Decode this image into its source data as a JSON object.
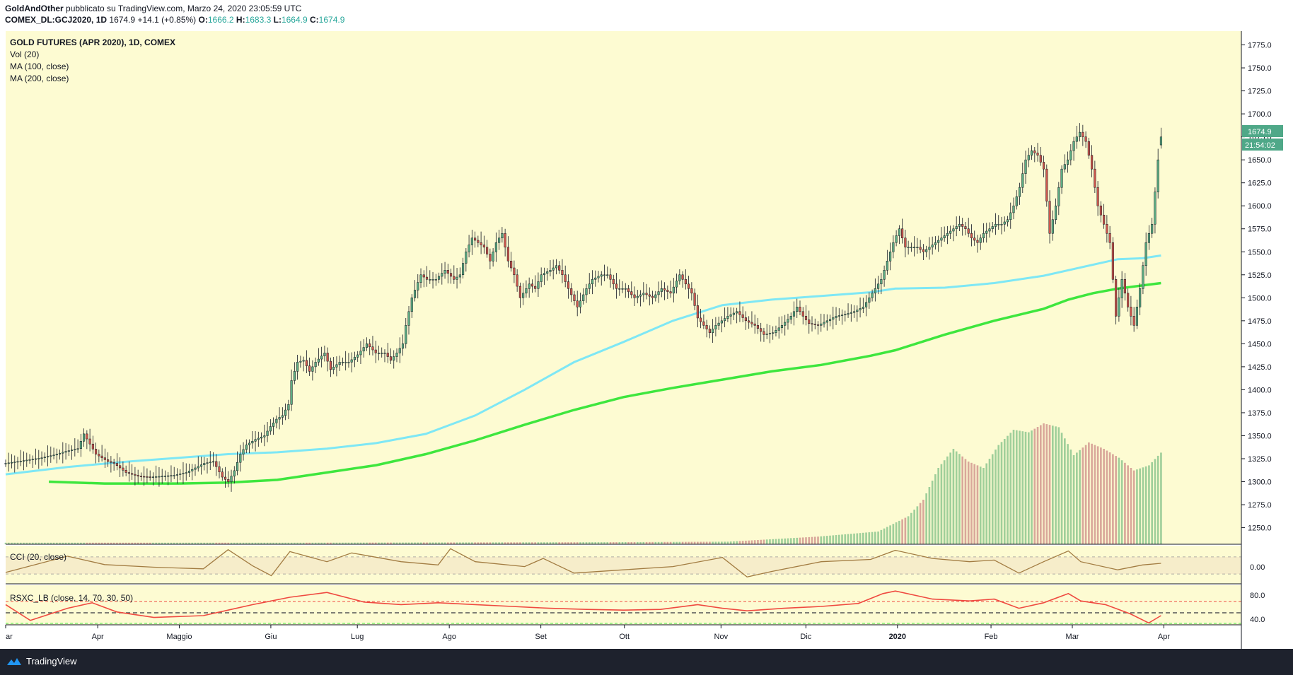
{
  "header": {
    "line1_author": "GoldAndOther",
    "line1_rest": "pubblicato su TradingView.com, Marzo 24, 2020 23:05:59 UTC",
    "symbol": "COMEX_DL:GCJ2020, 1D",
    "last": "1674.9",
    "change": "+14.1 (+0.85%)",
    "o_label": "O:",
    "o_value": "1666.2",
    "h_label": "H:",
    "h_value": "1683.3",
    "l_label": "L:",
    "l_value": "1664.9",
    "c_label": "C:",
    "c_value": "1674.9"
  },
  "legend": {
    "title": "GOLD FUTURES (APR 2020), 1D, COMEX",
    "vol": "Vol (20)",
    "ma100": "MA (100, close)",
    "ma200": "MA (200, close)"
  },
  "indicators": {
    "cci_label": "CCI (20, close)",
    "cci_value_label": "0.00",
    "rsx_label": "RSXC_LB (close, 14, 70, 30, 50)",
    "rsx_tick_80": "80.0",
    "rsx_tick_40": "40.0"
  },
  "badges": {
    "price": "1674.9",
    "countdown": "21:54:02"
  },
  "footer": {
    "brand": "TradingView"
  },
  "colors": {
    "background": "#fdfbd2",
    "up_candle": "#5dae84",
    "down_candle": "#d0574d",
    "ma100": "#7ee7f5",
    "ma200": "#3ee63e",
    "cci_line": "#a27c42",
    "rsx_line": "#ef4a40",
    "price_badge": "#4fa888"
  },
  "chart_data": {
    "type": "candlestick",
    "title": "GOLD FUTURES (APR 2020), 1D, COMEX",
    "y_axis_ticks": [
      "1775.0",
      "1750.0",
      "1725.0",
      "1700.0",
      "1675.0",
      "1650.0",
      "1625.0",
      "1600.0",
      "1575.0",
      "1550.0",
      "1525.0",
      "1500.0",
      "1475.0",
      "1450.0",
      "1425.0",
      "1400.0",
      "1375.0",
      "1350.0",
      "1325.0",
      "1300.0",
      "1275.0",
      "1250.0"
    ],
    "ylim": [
      1232,
      1790
    ],
    "x_axis_labels": [
      "ar",
      "Apr",
      "Maggio",
      "Giu",
      "Lug",
      "Ago",
      "Set",
      "Ott",
      "Nov",
      "Dic",
      "2020",
      "Feb",
      "Mar",
      "Apr"
    ],
    "x_axis_bold": "2020",
    "anchors": [
      {
        "label": "Apr",
        "pos": 0.0745
      },
      {
        "label": "Maggio",
        "pos": 0.1405
      },
      {
        "label": "Giu",
        "pos": 0.2146
      },
      {
        "label": "Lug",
        "pos": 0.2846
      },
      {
        "label": "Ago",
        "pos": 0.359
      },
      {
        "label": "Set",
        "pos": 0.4331
      },
      {
        "label": "Ott",
        "pos": 0.5007
      },
      {
        "label": "Nov",
        "pos": 0.5789
      },
      {
        "label": "Dic",
        "pos": 0.6476
      },
      {
        "label": "2020",
        "pos": 0.7217
      },
      {
        "label": "Feb",
        "pos": 0.7974
      },
      {
        "label": "Mar",
        "pos": 0.8632
      },
      {
        "label": "Apr",
        "pos": 0.9373
      }
    ],
    "last_price": 1674.9,
    "close_path": [
      [
        0,
        1320
      ],
      [
        4,
        1322
      ],
      [
        8,
        1324
      ],
      [
        12,
        1326
      ],
      [
        16,
        1329
      ],
      [
        20,
        1333
      ],
      [
        24,
        1336
      ],
      [
        26,
        1352
      ],
      [
        30,
        1330
      ],
      [
        34,
        1322
      ],
      [
        36,
        1320
      ],
      [
        40,
        1310
      ],
      [
        44,
        1306
      ],
      [
        48,
        1305
      ],
      [
        52,
        1306
      ],
      [
        56,
        1307
      ],
      [
        60,
        1310
      ],
      [
        63,
        1315
      ],
      [
        66,
        1320
      ],
      [
        69,
        1322
      ],
      [
        72,
        1305
      ],
      [
        74,
        1300
      ],
      [
        76,
        1312
      ],
      [
        78,
        1330
      ],
      [
        80,
        1340
      ],
      [
        83,
        1346
      ],
      [
        86,
        1350
      ],
      [
        88,
        1360
      ],
      [
        90,
        1368
      ],
      [
        92,
        1372
      ],
      [
        94,
        1384
      ],
      [
        95,
        1410
      ],
      [
        97,
        1430
      ],
      [
        99,
        1432
      ],
      [
        101,
        1420
      ],
      [
        103,
        1430
      ],
      [
        106,
        1440
      ],
      [
        108,
        1422
      ],
      [
        111,
        1430
      ],
      [
        114,
        1430
      ],
      [
        117,
        1438
      ],
      [
        120,
        1450
      ],
      [
        123,
        1440
      ],
      [
        126,
        1440
      ],
      [
        128,
        1432
      ],
      [
        130,
        1440
      ],
      [
        132,
        1450
      ],
      [
        133,
        1470
      ],
      [
        135,
        1500
      ],
      [
        138,
        1525
      ],
      [
        140,
        1520
      ],
      [
        143,
        1520
      ],
      [
        146,
        1530
      ],
      [
        149,
        1520
      ],
      [
        151,
        1525
      ],
      [
        153,
        1550
      ],
      [
        155,
        1565
      ],
      [
        157,
        1560
      ],
      [
        159,
        1555
      ],
      [
        161,
        1540
      ],
      [
        163,
        1560
      ],
      [
        165,
        1570
      ],
      [
        167,
        1540
      ],
      [
        169,
        1525
      ],
      [
        171,
        1500
      ],
      [
        174,
        1515
      ],
      [
        176,
        1510
      ],
      [
        178,
        1525
      ],
      [
        181,
        1530
      ],
      [
        183,
        1535
      ],
      [
        185,
        1525
      ],
      [
        187,
        1510
      ],
      [
        190,
        1490
      ],
      [
        193,
        1510
      ],
      [
        195,
        1520
      ],
      [
        198,
        1525
      ],
      [
        200,
        1525
      ],
      [
        203,
        1510
      ],
      [
        206,
        1510
      ],
      [
        209,
        1500
      ],
      [
        212,
        1505
      ],
      [
        215,
        1500
      ],
      [
        218,
        1510
      ],
      [
        221,
        1505
      ],
      [
        224,
        1525
      ],
      [
        226,
        1515
      ],
      [
        228,
        1505
      ],
      [
        230,
        1478
      ],
      [
        232,
        1470
      ],
      [
        234,
        1462
      ],
      [
        236,
        1470
      ],
      [
        238,
        1475
      ],
      [
        240,
        1480
      ],
      [
        243,
        1485
      ],
      [
        246,
        1475
      ],
      [
        249,
        1470
      ],
      [
        252,
        1460
      ],
      [
        255,
        1462
      ],
      [
        258,
        1470
      ],
      [
        261,
        1480
      ],
      [
        263,
        1490
      ],
      [
        265,
        1480
      ],
      [
        267,
        1472
      ],
      [
        270,
        1470
      ],
      [
        273,
        1475
      ],
      [
        276,
        1480
      ],
      [
        279,
        1482
      ],
      [
        282,
        1485
      ],
      [
        285,
        1490
      ],
      [
        287,
        1500
      ],
      [
        289,
        1510
      ],
      [
        291,
        1520
      ],
      [
        293,
        1540
      ],
      [
        295,
        1560
      ],
      [
        297,
        1575
      ],
      [
        299,
        1555
      ],
      [
        301,
        1555
      ],
      [
        303,
        1555
      ],
      [
        305,
        1550
      ],
      [
        307,
        1555
      ],
      [
        309,
        1560
      ],
      [
        311,
        1565
      ],
      [
        313,
        1570
      ],
      [
        315,
        1575
      ],
      [
        317,
        1580
      ],
      [
        319,
        1575
      ],
      [
        321,
        1565
      ],
      [
        323,
        1560
      ],
      [
        325,
        1570
      ],
      [
        327,
        1575
      ],
      [
        329,
        1580
      ],
      [
        331,
        1580
      ],
      [
        333,
        1585
      ],
      [
        335,
        1600
      ],
      [
        337,
        1620
      ],
      [
        339,
        1650
      ],
      [
        341,
        1660
      ],
      [
        343,
        1655
      ],
      [
        345,
        1640
      ],
      [
        347,
        1570
      ],
      [
        349,
        1600
      ],
      [
        351,
        1640
      ],
      [
        353,
        1650
      ],
      [
        355,
        1670
      ],
      [
        357,
        1680
      ],
      [
        359,
        1670
      ],
      [
        361,
        1640
      ],
      [
        363,
        1600
      ],
      [
        365,
        1580
      ],
      [
        367,
        1560
      ],
      [
        369,
        1480
      ],
      [
        371,
        1520
      ],
      [
        373,
        1490
      ],
      [
        375,
        1470
      ],
      [
        377,
        1510
      ],
      [
        379,
        1560
      ],
      [
        381,
        1580
      ],
      [
        383,
        1650
      ],
      [
        384,
        1675
      ]
    ],
    "overlay_ma100": [
      [
        0.0,
        1308
      ],
      [
        0.05,
        1316
      ],
      [
        0.1,
        1322
      ],
      [
        0.14,
        1326
      ],
      [
        0.18,
        1330
      ],
      [
        0.22,
        1332
      ],
      [
        0.26,
        1336
      ],
      [
        0.3,
        1342
      ],
      [
        0.34,
        1352
      ],
      [
        0.38,
        1372
      ],
      [
        0.42,
        1400
      ],
      [
        0.46,
        1430
      ],
      [
        0.5,
        1452
      ],
      [
        0.54,
        1475
      ],
      [
        0.58,
        1492
      ],
      [
        0.62,
        1498
      ],
      [
        0.66,
        1502
      ],
      [
        0.7,
        1506
      ],
      [
        0.72,
        1510
      ],
      [
        0.76,
        1511
      ],
      [
        0.8,
        1516
      ],
      [
        0.84,
        1524
      ],
      [
        0.87,
        1533
      ],
      [
        0.9,
        1542
      ],
      [
        0.92,
        1543
      ],
      [
        0.935,
        1546
      ]
    ],
    "overlay_ma200": [
      [
        0.035,
        1300
      ],
      [
        0.08,
        1298
      ],
      [
        0.14,
        1298
      ],
      [
        0.18,
        1299
      ],
      [
        0.22,
        1302
      ],
      [
        0.26,
        1310
      ],
      [
        0.3,
        1318
      ],
      [
        0.34,
        1330
      ],
      [
        0.38,
        1345
      ],
      [
        0.42,
        1362
      ],
      [
        0.46,
        1378
      ],
      [
        0.5,
        1392
      ],
      [
        0.54,
        1402
      ],
      [
        0.58,
        1411
      ],
      [
        0.62,
        1420
      ],
      [
        0.66,
        1427
      ],
      [
        0.7,
        1437
      ],
      [
        0.72,
        1443
      ],
      [
        0.76,
        1460
      ],
      [
        0.8,
        1475
      ],
      [
        0.84,
        1488
      ],
      [
        0.86,
        1498
      ],
      [
        0.88,
        1505
      ],
      [
        0.9,
        1510
      ],
      [
        0.935,
        1516
      ]
    ],
    "volume_path": [
      [
        0,
        1.2
      ],
      [
        100,
        1.2
      ],
      [
        150,
        1.4
      ],
      [
        200,
        1.6
      ],
      [
        240,
        2
      ],
      [
        270,
        6
      ],
      [
        290,
        10
      ],
      [
        300,
        22
      ],
      [
        305,
        35
      ],
      [
        310,
        60
      ],
      [
        315,
        75
      ],
      [
        320,
        65
      ],
      [
        325,
        60
      ],
      [
        330,
        78
      ],
      [
        335,
        90
      ],
      [
        340,
        88
      ],
      [
        345,
        95
      ],
      [
        350,
        92
      ],
      [
        355,
        70
      ],
      [
        360,
        80
      ],
      [
        365,
        75
      ],
      [
        370,
        68
      ],
      [
        375,
        58
      ],
      [
        380,
        62
      ],
      [
        384,
        72
      ]
    ],
    "cci_path": [
      [
        0,
        0.22
      ],
      [
        0.05,
        0.72
      ],
      [
        0.08,
        0.46
      ],
      [
        0.12,
        0.38
      ],
      [
        0.16,
        0.33
      ],
      [
        0.18,
        0.92
      ],
      [
        0.2,
        0.42
      ],
      [
        0.215,
        0.12
      ],
      [
        0.23,
        0.86
      ],
      [
        0.26,
        0.55
      ],
      [
        0.28,
        0.82
      ],
      [
        0.32,
        0.55
      ],
      [
        0.35,
        0.45
      ],
      [
        0.36,
        0.95
      ],
      [
        0.38,
        0.55
      ],
      [
        0.42,
        0.4
      ],
      [
        0.435,
        0.65
      ],
      [
        0.46,
        0.2
      ],
      [
        0.5,
        0.3
      ],
      [
        0.54,
        0.4
      ],
      [
        0.58,
        0.68
      ],
      [
        0.6,
        0.08
      ],
      [
        0.62,
        0.25
      ],
      [
        0.66,
        0.55
      ],
      [
        0.7,
        0.62
      ],
      [
        0.72,
        0.9
      ],
      [
        0.75,
        0.65
      ],
      [
        0.78,
        0.55
      ],
      [
        0.8,
        0.6
      ],
      [
        0.82,
        0.2
      ],
      [
        0.84,
        0.55
      ],
      [
        0.86,
        0.88
      ],
      [
        0.87,
        0.55
      ],
      [
        0.9,
        0.3
      ],
      [
        0.92,
        0.45
      ],
      [
        0.935,
        0.5
      ]
    ],
    "rsx_path": [
      [
        0,
        0.55
      ],
      [
        0.02,
        0.12
      ],
      [
        0.05,
        0.45
      ],
      [
        0.07,
        0.6
      ],
      [
        0.09,
        0.35
      ],
      [
        0.12,
        0.2
      ],
      [
        0.16,
        0.25
      ],
      [
        0.18,
        0.4
      ],
      [
        0.2,
        0.55
      ],
      [
        0.23,
        0.75
      ],
      [
        0.26,
        0.88
      ],
      [
        0.29,
        0.62
      ],
      [
        0.32,
        0.55
      ],
      [
        0.35,
        0.6
      ],
      [
        0.38,
        0.55
      ],
      [
        0.41,
        0.5
      ],
      [
        0.44,
        0.45
      ],
      [
        0.47,
        0.42
      ],
      [
        0.5,
        0.4
      ],
      [
        0.53,
        0.42
      ],
      [
        0.56,
        0.55
      ],
      [
        0.58,
        0.45
      ],
      [
        0.6,
        0.38
      ],
      [
        0.63,
        0.45
      ],
      [
        0.66,
        0.5
      ],
      [
        0.69,
        0.58
      ],
      [
        0.71,
        0.85
      ],
      [
        0.72,
        0.92
      ],
      [
        0.75,
        0.7
      ],
      [
        0.78,
        0.65
      ],
      [
        0.8,
        0.7
      ],
      [
        0.82,
        0.45
      ],
      [
        0.84,
        0.6
      ],
      [
        0.86,
        0.85
      ],
      [
        0.87,
        0.65
      ],
      [
        0.89,
        0.55
      ],
      [
        0.91,
        0.3
      ],
      [
        0.925,
        0.05
      ],
      [
        0.935,
        0.25
      ]
    ]
  }
}
